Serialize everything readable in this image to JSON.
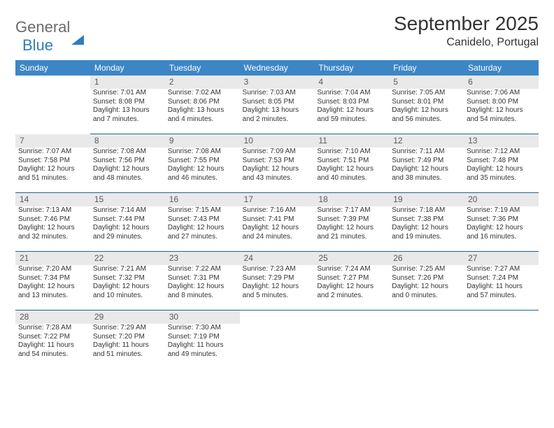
{
  "logo": {
    "word1": "General",
    "word2": "Blue"
  },
  "title": "September 2025",
  "location": "Canidelo, Portugal",
  "colors": {
    "header_bg": "#3d86c6",
    "header_text": "#ffffff",
    "daynum_bg": "#e9e9e9",
    "daynum_text": "#5a5a5a",
    "row_divider": "#2a5f8a",
    "body_text": "#333333",
    "logo_gray": "#6b6b6b",
    "logo_blue": "#2f7dc0",
    "page_bg": "#ffffff"
  },
  "weekdays": [
    "Sunday",
    "Monday",
    "Tuesday",
    "Wednesday",
    "Thursday",
    "Friday",
    "Saturday"
  ],
  "weeks": [
    [
      null,
      {
        "n": "1",
        "sr": "Sunrise: 7:01 AM",
        "ss": "Sunset: 8:08 PM",
        "dl": "Daylight: 13 hours and 7 minutes."
      },
      {
        "n": "2",
        "sr": "Sunrise: 7:02 AM",
        "ss": "Sunset: 8:06 PM",
        "dl": "Daylight: 13 hours and 4 minutes."
      },
      {
        "n": "3",
        "sr": "Sunrise: 7:03 AM",
        "ss": "Sunset: 8:05 PM",
        "dl": "Daylight: 13 hours and 2 minutes."
      },
      {
        "n": "4",
        "sr": "Sunrise: 7:04 AM",
        "ss": "Sunset: 8:03 PM",
        "dl": "Daylight: 12 hours and 59 minutes."
      },
      {
        "n": "5",
        "sr": "Sunrise: 7:05 AM",
        "ss": "Sunset: 8:01 PM",
        "dl": "Daylight: 12 hours and 56 minutes."
      },
      {
        "n": "6",
        "sr": "Sunrise: 7:06 AM",
        "ss": "Sunset: 8:00 PM",
        "dl": "Daylight: 12 hours and 54 minutes."
      }
    ],
    [
      {
        "n": "7",
        "sr": "Sunrise: 7:07 AM",
        "ss": "Sunset: 7:58 PM",
        "dl": "Daylight: 12 hours and 51 minutes."
      },
      {
        "n": "8",
        "sr": "Sunrise: 7:08 AM",
        "ss": "Sunset: 7:56 PM",
        "dl": "Daylight: 12 hours and 48 minutes."
      },
      {
        "n": "9",
        "sr": "Sunrise: 7:08 AM",
        "ss": "Sunset: 7:55 PM",
        "dl": "Daylight: 12 hours and 46 minutes."
      },
      {
        "n": "10",
        "sr": "Sunrise: 7:09 AM",
        "ss": "Sunset: 7:53 PM",
        "dl": "Daylight: 12 hours and 43 minutes."
      },
      {
        "n": "11",
        "sr": "Sunrise: 7:10 AM",
        "ss": "Sunset: 7:51 PM",
        "dl": "Daylight: 12 hours and 40 minutes."
      },
      {
        "n": "12",
        "sr": "Sunrise: 7:11 AM",
        "ss": "Sunset: 7:49 PM",
        "dl": "Daylight: 12 hours and 38 minutes."
      },
      {
        "n": "13",
        "sr": "Sunrise: 7:12 AM",
        "ss": "Sunset: 7:48 PM",
        "dl": "Daylight: 12 hours and 35 minutes."
      }
    ],
    [
      {
        "n": "14",
        "sr": "Sunrise: 7:13 AM",
        "ss": "Sunset: 7:46 PM",
        "dl": "Daylight: 12 hours and 32 minutes."
      },
      {
        "n": "15",
        "sr": "Sunrise: 7:14 AM",
        "ss": "Sunset: 7:44 PM",
        "dl": "Daylight: 12 hours and 29 minutes."
      },
      {
        "n": "16",
        "sr": "Sunrise: 7:15 AM",
        "ss": "Sunset: 7:43 PM",
        "dl": "Daylight: 12 hours and 27 minutes."
      },
      {
        "n": "17",
        "sr": "Sunrise: 7:16 AM",
        "ss": "Sunset: 7:41 PM",
        "dl": "Daylight: 12 hours and 24 minutes."
      },
      {
        "n": "18",
        "sr": "Sunrise: 7:17 AM",
        "ss": "Sunset: 7:39 PM",
        "dl": "Daylight: 12 hours and 21 minutes."
      },
      {
        "n": "19",
        "sr": "Sunrise: 7:18 AM",
        "ss": "Sunset: 7:38 PM",
        "dl": "Daylight: 12 hours and 19 minutes."
      },
      {
        "n": "20",
        "sr": "Sunrise: 7:19 AM",
        "ss": "Sunset: 7:36 PM",
        "dl": "Daylight: 12 hours and 16 minutes."
      }
    ],
    [
      {
        "n": "21",
        "sr": "Sunrise: 7:20 AM",
        "ss": "Sunset: 7:34 PM",
        "dl": "Daylight: 12 hours and 13 minutes."
      },
      {
        "n": "22",
        "sr": "Sunrise: 7:21 AM",
        "ss": "Sunset: 7:32 PM",
        "dl": "Daylight: 12 hours and 10 minutes."
      },
      {
        "n": "23",
        "sr": "Sunrise: 7:22 AM",
        "ss": "Sunset: 7:31 PM",
        "dl": "Daylight: 12 hours and 8 minutes."
      },
      {
        "n": "24",
        "sr": "Sunrise: 7:23 AM",
        "ss": "Sunset: 7:29 PM",
        "dl": "Daylight: 12 hours and 5 minutes."
      },
      {
        "n": "25",
        "sr": "Sunrise: 7:24 AM",
        "ss": "Sunset: 7:27 PM",
        "dl": "Daylight: 12 hours and 2 minutes."
      },
      {
        "n": "26",
        "sr": "Sunrise: 7:25 AM",
        "ss": "Sunset: 7:26 PM",
        "dl": "Daylight: 12 hours and 0 minutes."
      },
      {
        "n": "27",
        "sr": "Sunrise: 7:27 AM",
        "ss": "Sunset: 7:24 PM",
        "dl": "Daylight: 11 hours and 57 minutes."
      }
    ],
    [
      {
        "n": "28",
        "sr": "Sunrise: 7:28 AM",
        "ss": "Sunset: 7:22 PM",
        "dl": "Daylight: 11 hours and 54 minutes."
      },
      {
        "n": "29",
        "sr": "Sunrise: 7:29 AM",
        "ss": "Sunset: 7:20 PM",
        "dl": "Daylight: 11 hours and 51 minutes."
      },
      {
        "n": "30",
        "sr": "Sunrise: 7:30 AM",
        "ss": "Sunset: 7:19 PM",
        "dl": "Daylight: 11 hours and 49 minutes."
      },
      null,
      null,
      null,
      null
    ]
  ]
}
